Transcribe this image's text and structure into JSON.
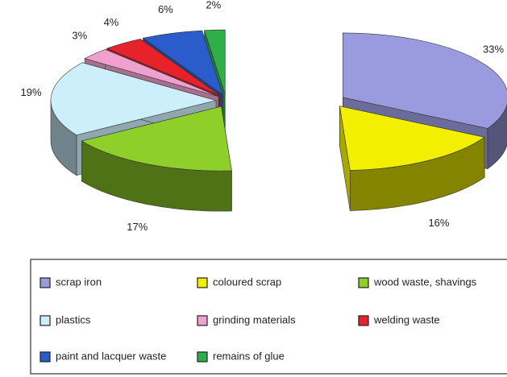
{
  "chart_data": {
    "type": "pie",
    "categories": [
      "scrap iron",
      "coloured scrap",
      "wood waste, shavings",
      "plastics",
      "grinding materials",
      "welding waste",
      "paint and lacquer waste",
      "remains of glue"
    ],
    "values": [
      33,
      16,
      17,
      19,
      3,
      4,
      6,
      2
    ],
    "value_labels": [
      "33%",
      "16%",
      "17%",
      "19%",
      "3%",
      "4%",
      "6%",
      "2%"
    ],
    "colors": [
      "#9a9ade",
      "#f2f000",
      "#8fcf2a",
      "#cdeefb",
      "#f0a0cc",
      "#e8222a",
      "#2a5ccc",
      "#2fae4a"
    ]
  }
}
